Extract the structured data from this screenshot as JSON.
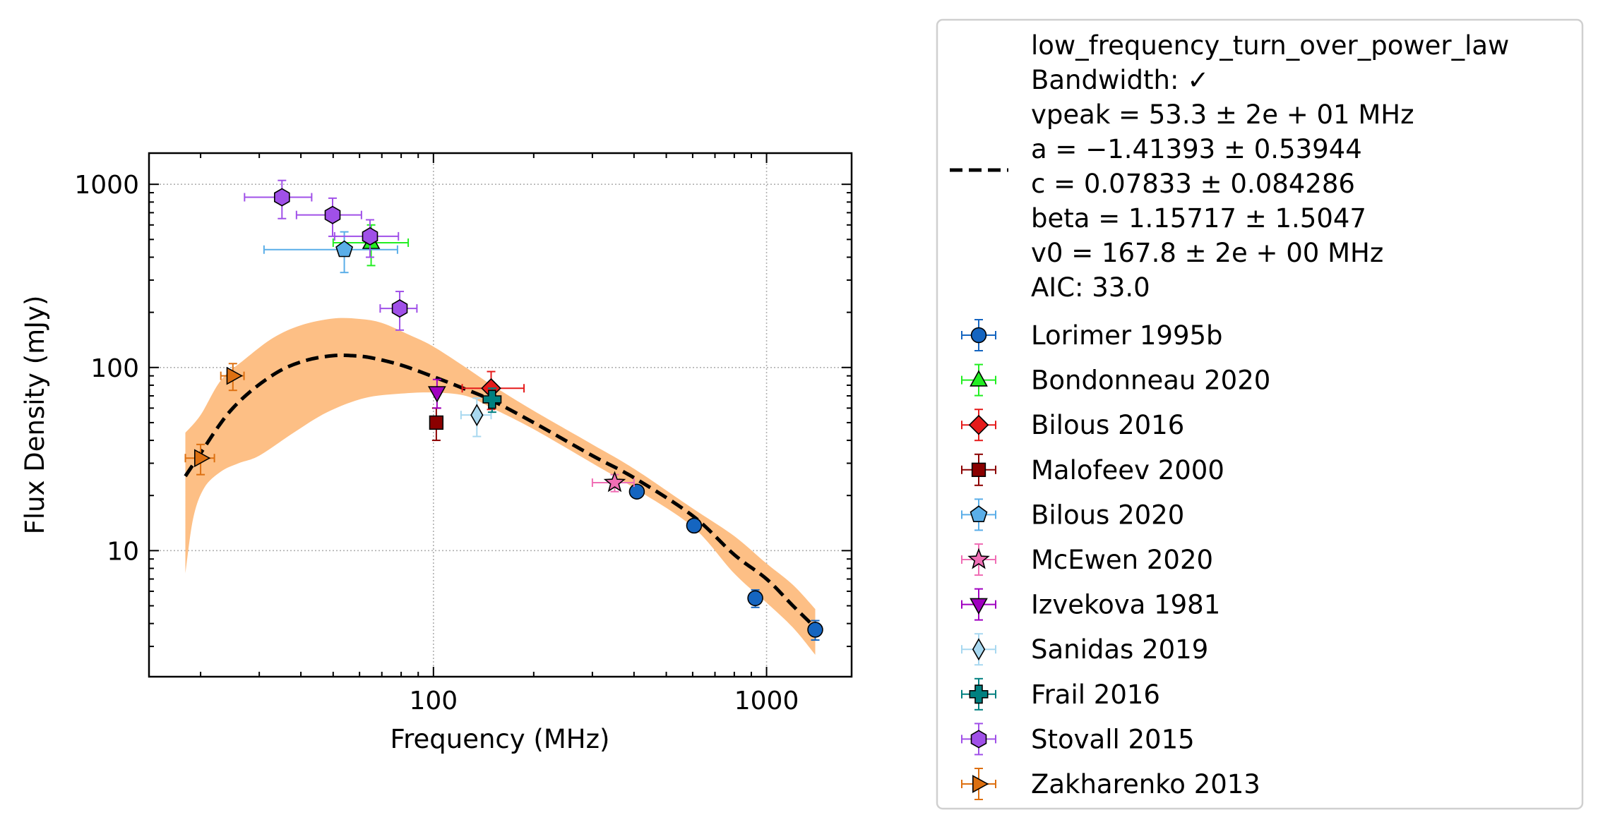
{
  "chart_data": {
    "type": "scatter",
    "xlabel": "Frequency (MHz)",
    "ylabel": "Flux Density (mJy)",
    "x_scale": "log",
    "y_scale": "log",
    "xlim": [
      14,
      1800
    ],
    "ylim": [
      2.05,
      1480
    ],
    "x_ticks": [
      {
        "value": 100,
        "label": "100"
      },
      {
        "value": 1000,
        "label": "1000"
      }
    ],
    "y_ticks": [
      {
        "value": 10,
        "label": "10"
      },
      {
        "value": 100,
        "label": "100"
      },
      {
        "value": 1000,
        "label": "1000"
      }
    ],
    "grid": true,
    "legend_position": "outside right",
    "fit": {
      "model": "low_frequency_turn_over_power_law",
      "label_lines": [
        "low_frequency_turn_over_power_law",
        "Bandwidth: ✓",
        "vpeak = 53.3 ± 2e + 01 MHz",
        "a = −1.41393 ± 0.53944",
        "c = 0.07833 ± 0.084286",
        "beta = 1.15717 ± 1.5047",
        "v0 = 167.8 ± 2e + 00 MHz",
        "AIC: 33.0"
      ],
      "line_color": "#000000",
      "band_color": "#fdbf85",
      "curve": [
        [
          18,
          25.5
        ],
        [
          20,
          34
        ],
        [
          22.5,
          47
        ],
        [
          25,
          60
        ],
        [
          29,
          77
        ],
        [
          35,
          97
        ],
        [
          42,
          110
        ],
        [
          50,
          116
        ],
        [
          57,
          116
        ],
        [
          65,
          113
        ],
        [
          80,
          103
        ],
        [
          100,
          89
        ],
        [
          125,
          76
        ],
        [
          150,
          66
        ],
        [
          200,
          50
        ],
        [
          300,
          33
        ],
        [
          400,
          25
        ],
        [
          600,
          15.5
        ],
        [
          800,
          9.5
        ],
        [
          1000,
          7
        ],
        [
          1200,
          5
        ],
        [
          1400,
          3.8
        ]
      ],
      "band_upper": [
        [
          18,
          44
        ],
        [
          20,
          55
        ],
        [
          23,
          85
        ],
        [
          27,
          110
        ],
        [
          33,
          145
        ],
        [
          40,
          170
        ],
        [
          50,
          185
        ],
        [
          60,
          184
        ],
        [
          70,
          175
        ],
        [
          85,
          150
        ],
        [
          100,
          130
        ],
        [
          125,
          100
        ],
        [
          150,
          80
        ],
        [
          200,
          58
        ],
        [
          300,
          38
        ],
        [
          400,
          28
        ],
        [
          600,
          17
        ],
        [
          800,
          12
        ],
        [
          1000,
          8.5
        ],
        [
          1200,
          6.5
        ],
        [
          1400,
          4.8
        ]
      ],
      "band_lower": [
        [
          18,
          7.5
        ],
        [
          19,
          15
        ],
        [
          20.5,
          22
        ],
        [
          23,
          27
        ],
        [
          26,
          30
        ],
        [
          30,
          33
        ],
        [
          38,
          44
        ],
        [
          48,
          57
        ],
        [
          62,
          68
        ],
        [
          80,
          72
        ],
        [
          100,
          73
        ],
        [
          125,
          70
        ],
        [
          150,
          60
        ],
        [
          200,
          46
        ],
        [
          300,
          30
        ],
        [
          400,
          22
        ],
        [
          600,
          13.5
        ],
        [
          800,
          7.5
        ],
        [
          1000,
          5.2
        ],
        [
          1200,
          3.8
        ],
        [
          1400,
          2.7
        ]
      ]
    },
    "series": [
      {
        "name": "Lorimer 1995b",
        "marker": "circle",
        "color": "#1565c0",
        "points": [
          {
            "x": 408,
            "y": 21,
            "xerr": [
              0,
              0
            ],
            "yerr": [
              1,
              1
            ]
          },
          {
            "x": 606,
            "y": 13.7,
            "xerr": [
              0,
              0
            ],
            "yerr": [
              0.7,
              0.7
            ]
          },
          {
            "x": 925,
            "y": 5.5,
            "xerr": [
              0,
              0
            ],
            "yerr": [
              0.6,
              0.6
            ]
          },
          {
            "x": 1400,
            "y": 3.7,
            "xerr": [
              0,
              0
            ],
            "yerr": [
              0.45,
              0.45
            ]
          }
        ]
      },
      {
        "name": "Bondonneau 2020",
        "marker": "triangle-up",
        "color": "#22ee22",
        "points": [
          {
            "x": 65,
            "y": 480,
            "xerr": [
              15,
              19
            ],
            "yerr": [
              120,
              120
            ]
          }
        ]
      },
      {
        "name": "Bilous 2016",
        "marker": "diamond",
        "color": "#e51b1b",
        "points": [
          {
            "x": 149,
            "y": 77,
            "xerr": [
              27,
              38
            ],
            "yerr": [
              18,
              18
            ]
          }
        ]
      },
      {
        "name": "Malofeev 2000",
        "marker": "square",
        "color": "#8b0000",
        "points": [
          {
            "x": 102,
            "y": 50,
            "xerr": [
              0,
              0
            ],
            "yerr": [
              10,
              10
            ]
          }
        ]
      },
      {
        "name": "Bilous 2020",
        "marker": "pentagon",
        "color": "#5aaee8",
        "points": [
          {
            "x": 54,
            "y": 440,
            "xerr": [
              23,
              24
            ],
            "yerr": [
              110,
              110
            ]
          }
        ]
      },
      {
        "name": "McEwen 2020",
        "marker": "star",
        "color": "#f06eb5",
        "points": [
          {
            "x": 350,
            "y": 23.5,
            "xerr": [
              50,
              50
            ],
            "yerr": [
              2.5,
              2.5
            ]
          }
        ]
      },
      {
        "name": "Izvekova 1981",
        "marker": "triangle-down",
        "color": "#a000c0",
        "points": [
          {
            "x": 102.5,
            "y": 73,
            "xerr": [
              0,
              0
            ],
            "yerr": [
              13,
              13
            ]
          }
        ]
      },
      {
        "name": "Sanidas 2019",
        "marker": "thin-diamond",
        "color": "#a8d8f0",
        "points": [
          {
            "x": 135,
            "y": 55,
            "xerr": [
              14,
              14
            ],
            "yerr": [
              13,
              13
            ]
          }
        ]
      },
      {
        "name": "Frail 2016",
        "marker": "plus",
        "color": "#008080",
        "points": [
          {
            "x": 150,
            "y": 67,
            "xerr": [
              0,
              0
            ],
            "yerr": [
              10,
              10
            ]
          }
        ]
      },
      {
        "name": "Stovall 2015",
        "marker": "hexagon",
        "color": "#a050e8",
        "points": [
          {
            "x": 35.1,
            "y": 850,
            "xerr": [
              8,
              8
            ],
            "yerr": [
              200,
              200
            ]
          },
          {
            "x": 49.8,
            "y": 680,
            "xerr": [
              11,
              11
            ],
            "yerr": [
              160,
              160
            ]
          },
          {
            "x": 64.5,
            "y": 520,
            "xerr": [
              14,
              14
            ],
            "yerr": [
              120,
              120
            ]
          },
          {
            "x": 79.2,
            "y": 210,
            "xerr": [
              10,
              10
            ],
            "yerr": [
              50,
              50
            ]
          }
        ]
      },
      {
        "name": "Zakharenko 2013",
        "marker": "triangle-right",
        "color": "#dd7011",
        "points": [
          {
            "x": 20,
            "y": 32,
            "xerr": [
              2,
              2
            ],
            "yerr": [
              6,
              6
            ]
          },
          {
            "x": 25,
            "y": 90,
            "xerr": [
              2,
              2
            ],
            "yerr": [
              15,
              15
            ]
          }
        ]
      }
    ]
  }
}
